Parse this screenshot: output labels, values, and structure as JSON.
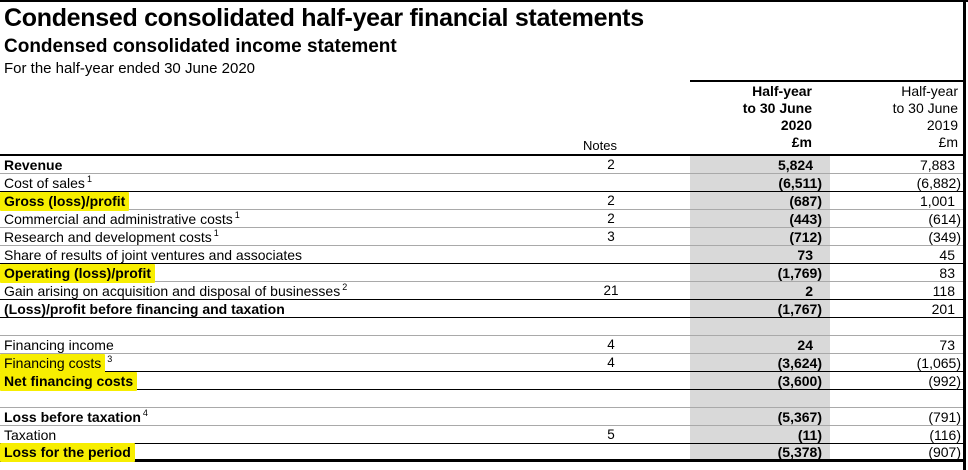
{
  "page": {
    "title": "Condensed consolidated half-year financial statements",
    "subtitle": "Condensed consolidated income statement",
    "period_line": "For the half-year ended 30 June 2020"
  },
  "table": {
    "header": {
      "notes_label": "Notes",
      "col_2020": "Half-year\nto 30 June\n2020\n£m",
      "col_2019": "Half-year\nto 30 June\n2019\n£m"
    },
    "rows": [
      {
        "label": "Revenue",
        "sup": "",
        "notes": "2",
        "v2020": "5,824",
        "v2019": "7,883"
      },
      {
        "label": "Cost of sales",
        "sup": "1",
        "notes": "",
        "v2020": "(6,511)",
        "v2019": "(6,882)"
      },
      {
        "label": "Gross (loss)/profit",
        "sup": "",
        "notes": "2",
        "v2020": "(687)",
        "v2019": "1,001"
      },
      {
        "label": "Commercial and administrative costs",
        "sup": "1",
        "notes": "2",
        "v2020": "(443)",
        "v2019": "(614)"
      },
      {
        "label": "Research and development costs",
        "sup": "1",
        "notes": "3",
        "v2020": "(712)",
        "v2019": "(349)"
      },
      {
        "label": "Share of results of joint ventures and associates",
        "sup": "",
        "notes": "",
        "v2020": "73",
        "v2019": "45"
      },
      {
        "label": "Operating (loss)/profit",
        "sup": "",
        "notes": "",
        "v2020": "(1,769)",
        "v2019": "83"
      },
      {
        "label": "Gain arising on acquisition and disposal of businesses",
        "sup": "2",
        "notes": "21",
        "v2020": "2",
        "v2019": "118"
      },
      {
        "label": "(Loss)/profit before financing and taxation",
        "sup": "",
        "notes": "",
        "v2020": "(1,767)",
        "v2019": "201"
      },
      {
        "label": "",
        "sup": "",
        "notes": "",
        "v2020": "",
        "v2019": ""
      },
      {
        "label": "Financing income",
        "sup": "",
        "notes": "4",
        "v2020": "24",
        "v2019": "73"
      },
      {
        "label": "Financing costs",
        "sup": "3",
        "notes": "4",
        "v2020": "(3,624)",
        "v2019": "(1,065)"
      },
      {
        "label": "Net financing costs",
        "sup": "",
        "notes": "",
        "v2020": "(3,600)",
        "v2019": "(992)"
      },
      {
        "label": "",
        "sup": "",
        "notes": "",
        "v2020": "",
        "v2019": ""
      },
      {
        "label": "Loss before taxation",
        "sup": "4",
        "notes": "",
        "v2020": "(5,367)",
        "v2019": "(791)"
      },
      {
        "label": "Taxation",
        "sup": "",
        "notes": "5",
        "v2020": "(11)",
        "v2019": "(116)"
      },
      {
        "label": "Loss for the period",
        "sup": "",
        "notes": "",
        "v2020": "(5,378)",
        "v2019": "(907)"
      }
    ]
  },
  "colors": {
    "highlight_yellow": "#f7ee00",
    "column_shade_gray": "#d9d9d9",
    "rule_black": "#000000",
    "rule_gray": "#a9a9a9"
  }
}
